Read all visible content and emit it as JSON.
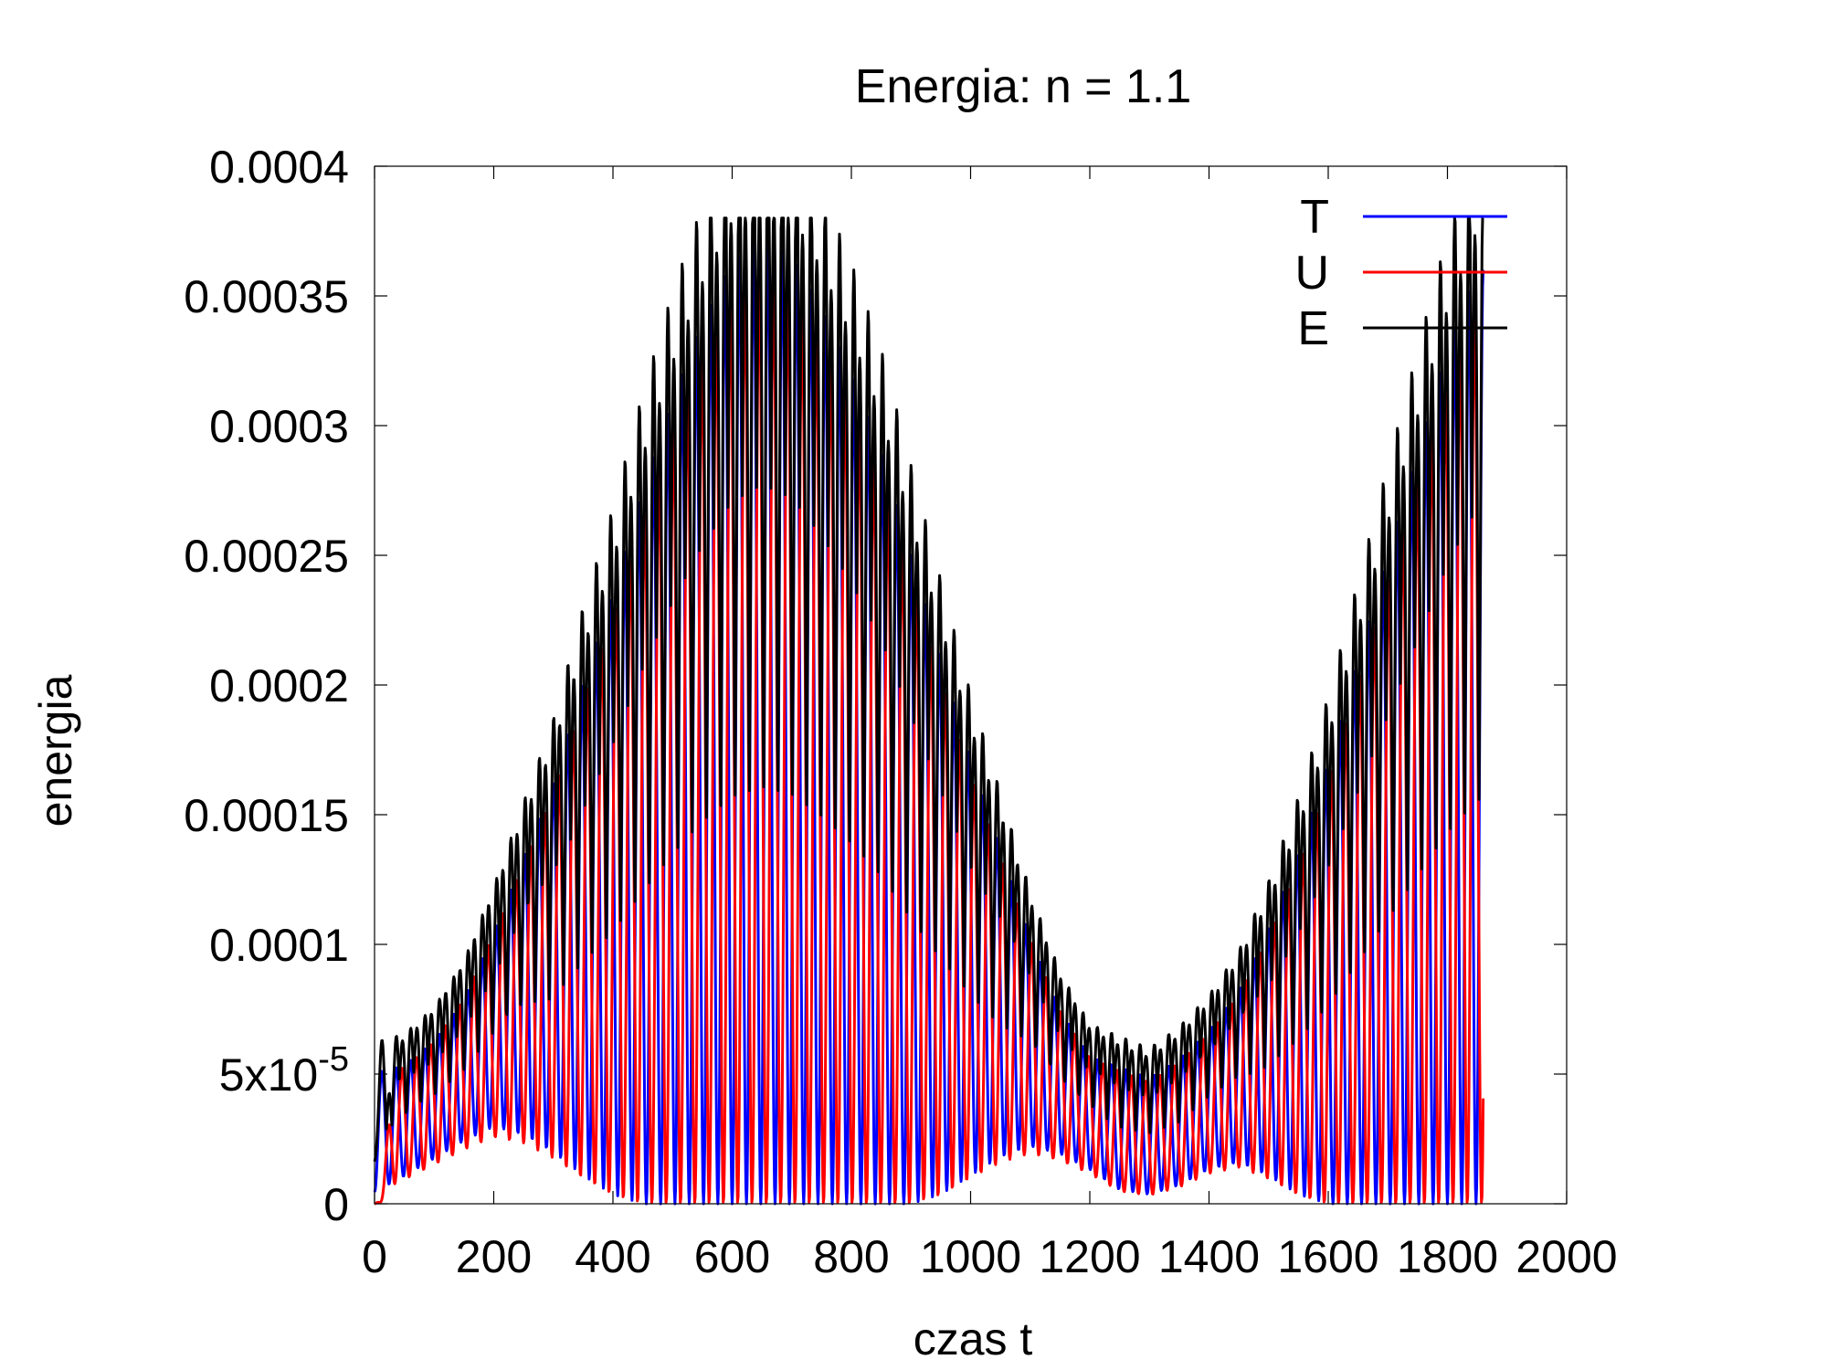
{
  "chart_data": {
    "type": "line",
    "title": "Energia: n = 1.1",
    "xlabel": "czas t",
    "ylabel": "energia",
    "xlim": [
      0,
      2000
    ],
    "ylim": [
      0,
      0.0004
    ],
    "x_ticks": [
      "0",
      "200",
      "400",
      "600",
      "800",
      "1000",
      "1200",
      "1400",
      "1600",
      "1800",
      "2000"
    ],
    "y_ticks": [
      {
        "value": 0,
        "label": "0"
      },
      {
        "value": 5e-05,
        "label": "5x10",
        "sup": "-5"
      },
      {
        "value": 0.0001,
        "label": "0.0001"
      },
      {
        "value": 0.00015,
        "label": "0.00015"
      },
      {
        "value": 0.0002,
        "label": "0.0002"
      },
      {
        "value": 0.00025,
        "label": "0.00025"
      },
      {
        "value": 0.0003,
        "label": "0.0003"
      },
      {
        "value": 0.00035,
        "label": "0.00035"
      },
      {
        "value": 0.0004,
        "label": "0.0004"
      }
    ],
    "grid": false,
    "legend_position": "top-right",
    "series": [
      {
        "name": "T",
        "color": "#0000ff"
      },
      {
        "name": "U",
        "color": "#ff0000"
      },
      {
        "name": "E",
        "color": "#000000"
      }
    ],
    "oscillation_period": 48,
    "t_end": 1860,
    "envelope": {
      "x": [
        0,
        50,
        100,
        150,
        200,
        250,
        300,
        350,
        400,
        450,
        500,
        550,
        600,
        650,
        700,
        750,
        800,
        850,
        900,
        950,
        1000,
        1050,
        1100,
        1150,
        1200,
        1250,
        1300,
        1350,
        1400,
        1450,
        1500,
        1550,
        1600,
        1650,
        1700,
        1750,
        1800,
        1850,
        1860
      ],
      "y": [
        5e-05,
        5.2e-05,
        6e-05,
        7.5e-05,
        0.0001,
        0.00013,
        0.00016,
        0.0002,
        0.000235,
        0.000275,
        0.00031,
        0.00034,
        0.000363,
        0.000372,
        0.000365,
        0.000345,
        0.00032,
        0.00029,
        0.00025,
        0.00021,
        0.00017,
        0.000135,
        0.0001,
        7.2e-05,
        5.5e-05,
        5.2e-05,
        4.8e-05,
        5.5e-05,
        6.5e-05,
        8e-05,
        0.000105,
        0.000135,
        0.00017,
        0.00021,
        0.00025,
        0.00029,
        0.00033,
        0.00036,
        0.00036
      ]
    },
    "offset": {
      "x": [
        0,
        50,
        100,
        150,
        200,
        250,
        300,
        350,
        400,
        450,
        500,
        550,
        600,
        650,
        700,
        750,
        800,
        850,
        900,
        950,
        1000,
        1050,
        1100,
        1150,
        1200,
        1250,
        1300,
        1350,
        1400,
        1450,
        1500,
        1550,
        1600,
        1650,
        1700,
        1750,
        1800,
        1850
      ],
      "y": [
        5e-06,
        1.2e-05,
        2e-05,
        2.8e-05,
        3.4e-05,
        3e-05,
        2.2e-05,
        1.2e-05,
        4e-06,
        0,
        0,
        0,
        0,
        0,
        0,
        0,
        0,
        0,
        0,
        4e-06,
        1.2e-05,
        2e-05,
        2.5e-05,
        2.2e-05,
        1.5e-05,
        6e-06,
        4e-06,
        8e-06,
        1.5e-05,
        1.8e-05,
        1.2e-05,
        4e-06,
        0,
        0,
        0,
        0,
        0,
        0
      ]
    }
  }
}
